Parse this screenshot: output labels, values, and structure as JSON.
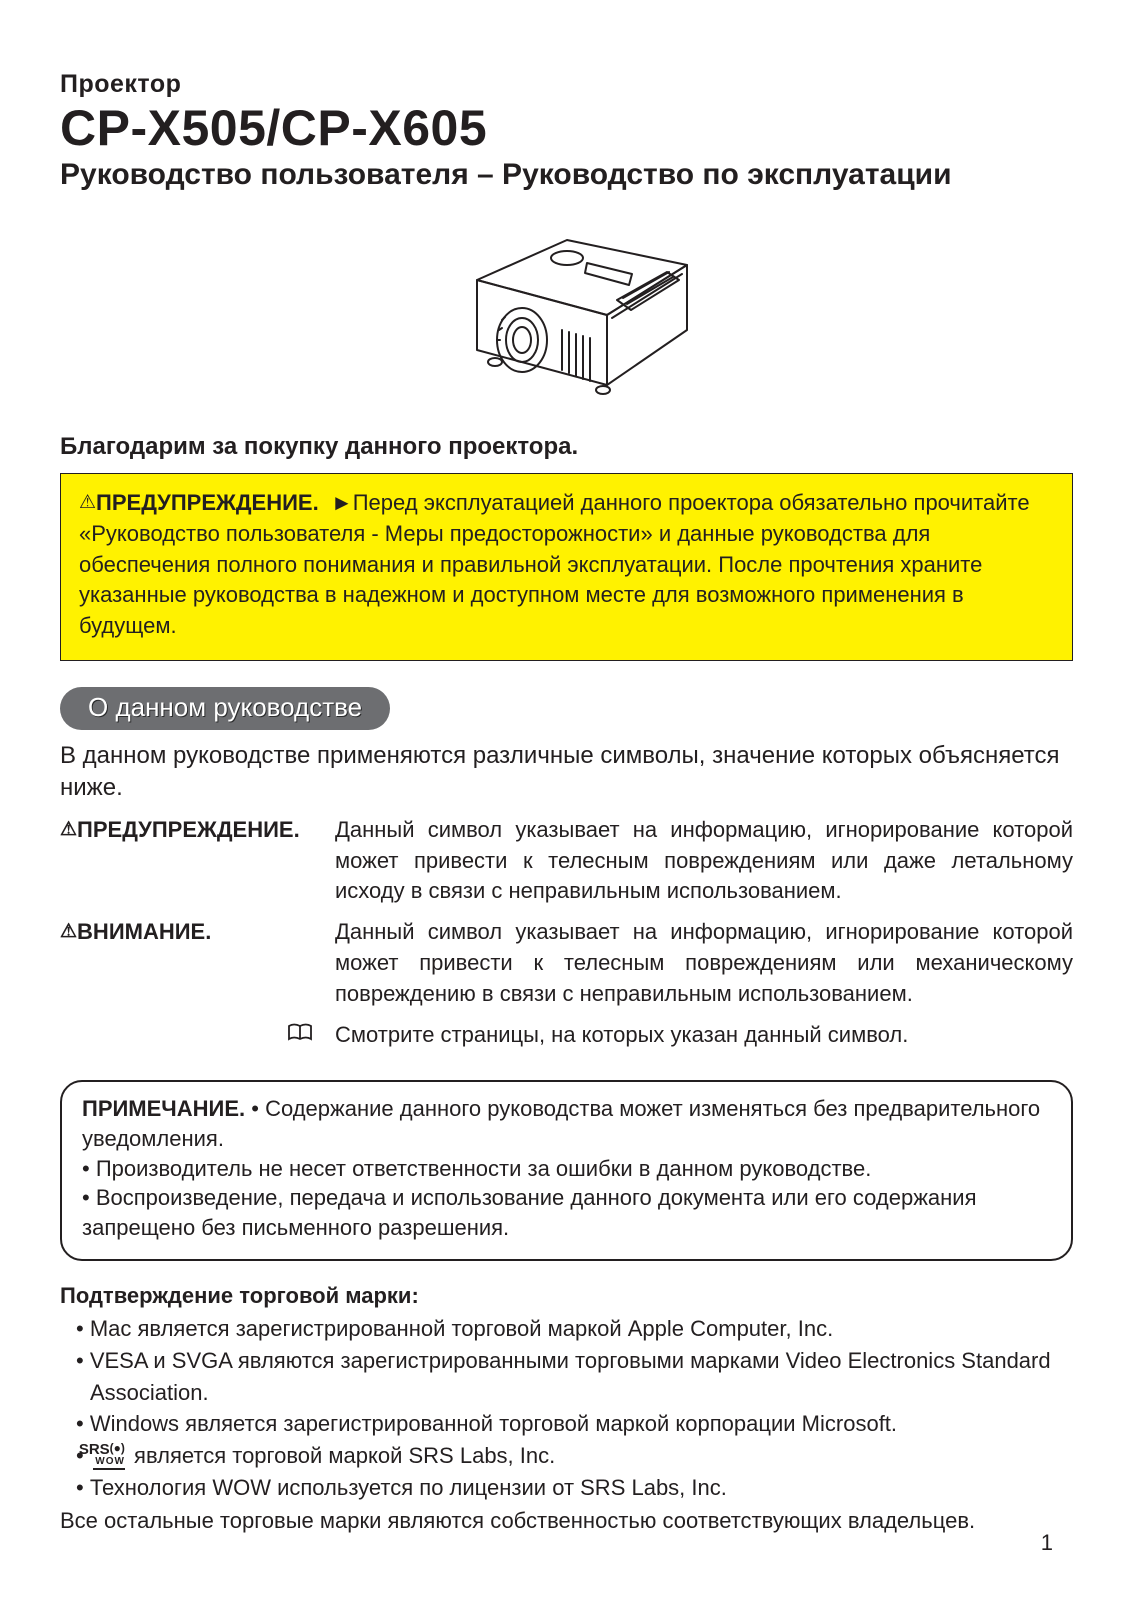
{
  "colors": {
    "text": "#231f20",
    "warning_bg": "#fff200",
    "pill_bg": "#6d6e71",
    "pill_text": "#ffffff",
    "page_bg": "#ffffff",
    "border": "#231f20"
  },
  "header": {
    "category": "Проектор",
    "model": "CP-X505/CP-X605",
    "subtitle": "Руководство пользователя – Руководство по эксплуатации"
  },
  "thanks": "Благодарим за покупку данного проектора.",
  "warning_box": {
    "icon": "⚠",
    "lead": "ПРЕДУПРЕЖДЕНИЕ.",
    "arrow": "►",
    "body": "Перед эксплуатацией данного проектора обязательно прочитайте «Руководство пользователя - Меры предосторожности» и данные руководства для обеспечения полного понимания и правильной эксплуатации. После прочтения храните указанные руководства в надежном и доступном месте для возможного применения в будущем."
  },
  "section_pill": "О данном руководстве",
  "section_intro": "В данном руководстве применяются различные символы, значение которых объясняется ниже.",
  "symbols": [
    {
      "icon": "⚠",
      "label": "ПРЕДУПРЕЖДЕНИЕ.",
      "desc": "Данный символ указывает на информацию, игнорирование которой может привести к телесным повреждениям или даже летальному исходу в связи с неправильным использованием."
    },
    {
      "icon": "⚠",
      "label": "ВНИМАНИЕ.",
      "desc": "Данный символ указывает на информацию, игнорирование которой может привести к телесным повреждениям или механическому повреждению в связи с неправильным использованием."
    }
  ],
  "book_row": {
    "icon": "book",
    "desc": "Смотрите страницы, на которых указан данный символ."
  },
  "note_box": {
    "lead": "ПРИМЕЧАНИЕ.",
    "lines": [
      "• Содержание данного руководства может изменяться без предварительного уведомления.",
      "• Производитель не несет ответственности за ошибки в данном руководстве.",
      "• Воспроизведение, передача и использование данного документа или его содержания запрещено без письменного разрешения."
    ]
  },
  "trademark": {
    "heading": "Подтверждение торговой марки:",
    "bullets": [
      "Mac является зарегистрированной торговой маркой Apple Computer, Inc.",
      "VESA и SVGA являются зарегистрированными торговыми марками Video Electronics Standard Association.",
      "Windows является зарегистрированной торговой маркой корпорации Microsoft.",
      "__SRS__ является торговой маркой SRS Labs, Inc.",
      "Технология WOW используется по лицензии от SRS Labs, Inc."
    ],
    "srs_logo": {
      "top": "SRS",
      "circ": "(●)",
      "bottom": "WOW"
    },
    "footer": "Все остальные торговые марки являются собственностью соответствующих владельцев."
  },
  "page_number": "1"
}
